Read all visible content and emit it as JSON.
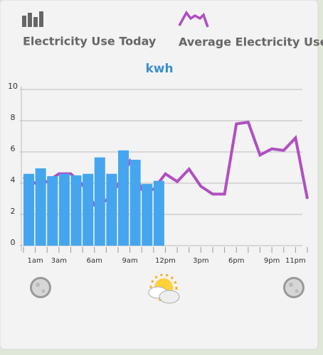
{
  "chart_data": {
    "type": "bar_line",
    "title": "kwh",
    "categories": [
      null,
      "1am",
      null,
      "3am",
      null,
      null,
      "6am",
      null,
      null,
      "9am",
      null,
      null,
      "12pm",
      null,
      null,
      "3pm",
      null,
      null,
      "6pm",
      null,
      null,
      "9pm",
      null,
      "11pm",
      null
    ],
    "series": [
      {
        "name": "Electricity Use Today",
        "type": "bar",
        "color": "#45a6ef",
        "values": [
          4.6,
          4.95,
          4.45,
          4.6,
          4.5,
          4.6,
          5.65,
          4.6,
          6.1,
          5.5,
          3.95,
          4.15,
          null,
          null,
          null,
          null,
          null,
          null,
          null,
          null,
          null,
          null,
          null,
          null,
          null
        ]
      },
      {
        "name": "Average Electricity Use",
        "type": "line",
        "color": "#b04fc2",
        "values": [
          4.4,
          4.0,
          4.1,
          4.6,
          4.6,
          3.9,
          2.6,
          2.9,
          3.9,
          5.4,
          3.6,
          3.6,
          4.6,
          4.1,
          4.9,
          3.8,
          3.3,
          3.3,
          7.8,
          7.9,
          5.8,
          6.2,
          6.1,
          6.9,
          3.0
        ]
      }
    ],
    "ylim": [
      0,
      10
    ],
    "yticks": [
      0,
      2,
      4,
      6,
      8,
      10
    ],
    "grid": true
  }
}
